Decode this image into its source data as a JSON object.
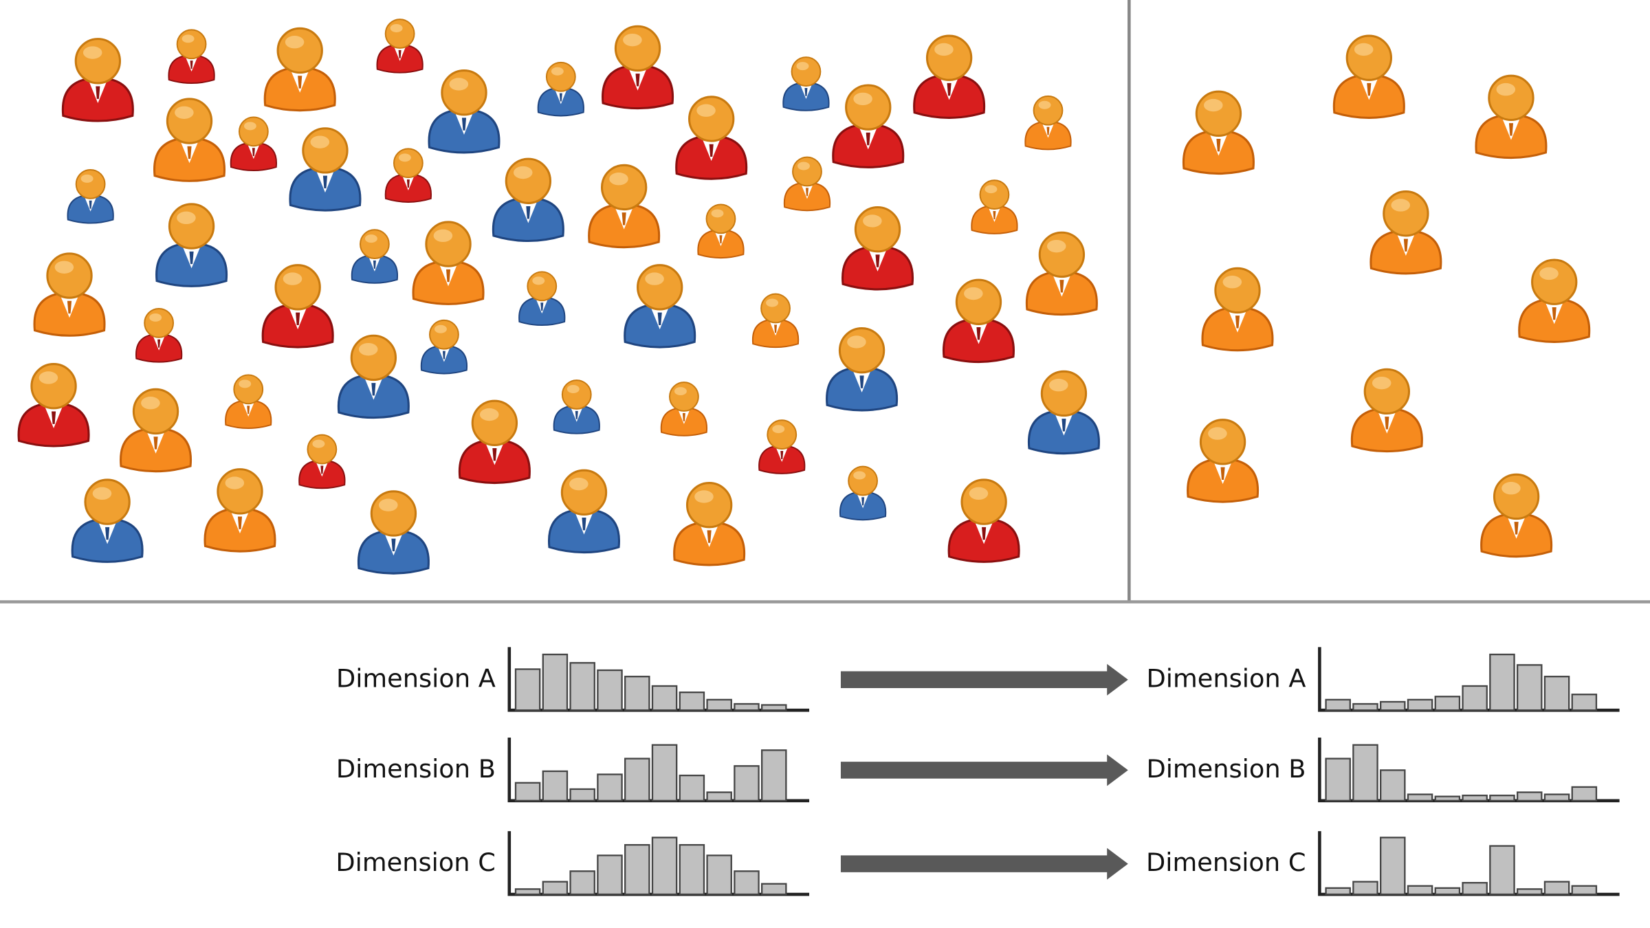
{
  "rows": [
    {
      "label": "Dimension A",
      "before": [
        39,
        53,
        45,
        38,
        32,
        23,
        17,
        10,
        6,
        5
      ],
      "after": [
        10,
        6,
        8,
        10,
        13,
        23,
        53,
        43,
        32,
        15
      ]
    },
    {
      "label": "Dimension B",
      "before": [
        17,
        28,
        11,
        25,
        40,
        53,
        24,
        8,
        33,
        48
      ],
      "after": [
        40,
        53,
        29,
        6,
        4,
        5,
        5,
        8,
        6,
        13
      ]
    },
    {
      "label": "Dimension C",
      "before": [
        5,
        12,
        22,
        37,
        47,
        54,
        47,
        37,
        22,
        10
      ],
      "after": [
        6,
        12,
        54,
        8,
        6,
        11,
        46,
        5,
        12,
        8
      ]
    }
  ]
}
